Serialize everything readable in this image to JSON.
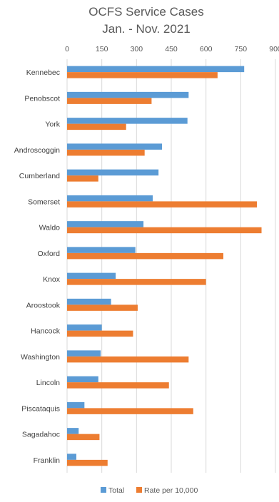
{
  "chart_data": {
    "type": "bar",
    "orientation": "horizontal",
    "title": [
      "OCFS Service Cases",
      "Jan. - Nov. 2021"
    ],
    "categories": [
      "Kennebec",
      "Penobscot",
      "York",
      "Androscoggin",
      "Cumberland",
      "Somerset",
      "Waldo",
      "Oxford",
      "Knox",
      "Aroostook",
      "Hancock",
      "Washington",
      "Lincoln",
      "Piscataquis",
      "Sagadahoc",
      "Franklin"
    ],
    "series": [
      {
        "name": "Total",
        "color": "#5b9bd5",
        "values": [
          765,
          525,
          520,
          410,
          395,
          370,
          330,
          295,
          210,
          190,
          150,
          145,
          135,
          75,
          50,
          40
        ]
      },
      {
        "name": "Rate per 10,000",
        "color": "#ed7d31",
        "values": [
          650,
          365,
          255,
          335,
          135,
          820,
          840,
          675,
          600,
          305,
          285,
          525,
          440,
          545,
          140,
          175
        ]
      }
    ],
    "xlim": [
      0,
      900
    ],
    "xticks": [
      "0",
      "150",
      "300",
      "450",
      "600",
      "750",
      "900"
    ],
    "grid": true,
    "legend_position": "bottom"
  }
}
